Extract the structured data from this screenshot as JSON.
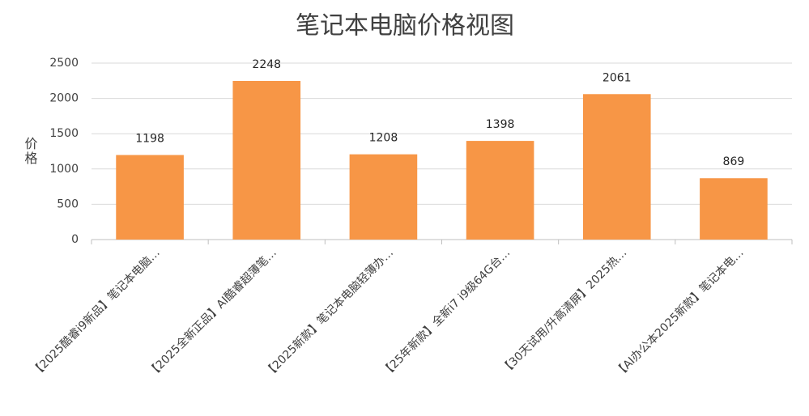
{
  "chart_data": {
    "type": "bar",
    "title": "笔记本电脑价格视图",
    "y_label": "价格",
    "categories": [
      "【2025酷睿i9新品】笔记本电脑…",
      "【2025全新正品】AI酷睿超薄笔…",
      "【2025新款】笔记本电脑轻薄办…",
      "【25年新款】全新i7 i9级64G台…",
      "【30天试用/升高清屏】2025热…",
      "【AI办公本2025新款】笔记本电…"
    ],
    "values": [
      1198,
      2248,
      1208,
      1398,
      2061,
      869
    ],
    "color": "#f79646",
    "ylim": [
      0,
      2500
    ],
    "yticks": [
      0,
      500,
      1000,
      1500,
      2000,
      2500
    ],
    "grid": true
  }
}
